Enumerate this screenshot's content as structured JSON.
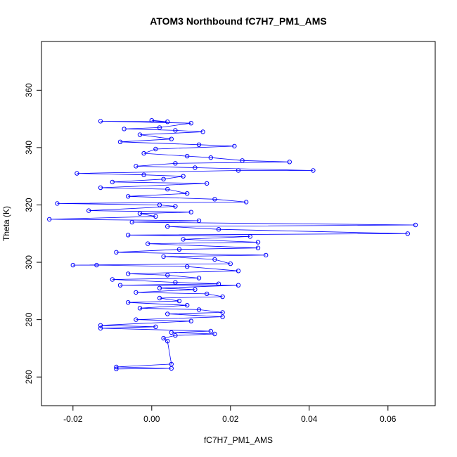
{
  "chart_data": {
    "type": "scatter",
    "title": "ATOM3 Northbound fC7H7_PM1_AMS",
    "xlabel": "fC7H7_PM1_AMS",
    "ylabel": "Theta (K)",
    "xlim": [
      -0.028,
      0.072
    ],
    "ylim": [
      250,
      377
    ],
    "xticks": [
      -0.02,
      0.0,
      0.02,
      0.04,
      0.06
    ],
    "xtick_labels": [
      "-0.02",
      "0.00",
      "0.02",
      "0.04",
      "0.06"
    ],
    "yticks": [
      260,
      280,
      300,
      320,
      340,
      360
    ],
    "ytick_labels": [
      "260",
      "280",
      "300",
      "320",
      "340",
      "360"
    ],
    "grid": false,
    "legend": "none",
    "series": [
      {
        "color": "#0000ff",
        "marker": "open-circle",
        "connect": true,
        "points": [
          [
            0.0,
            349.5
          ],
          [
            0.004,
            349.0
          ],
          [
            -0.013,
            349.2
          ],
          [
            0.01,
            348.5
          ],
          [
            0.002,
            347.0
          ],
          [
            -0.007,
            346.5
          ],
          [
            0.006,
            346.0
          ],
          [
            0.013,
            345.5
          ],
          [
            -0.003,
            344.5
          ],
          [
            0.005,
            343.0
          ],
          [
            -0.008,
            342.0
          ],
          [
            0.012,
            341.0
          ],
          [
            0.021,
            340.5
          ],
          [
            0.001,
            339.5
          ],
          [
            -0.002,
            338.0
          ],
          [
            0.009,
            337.0
          ],
          [
            0.015,
            336.5
          ],
          [
            0.023,
            335.5
          ],
          [
            0.035,
            335.0
          ],
          [
            0.006,
            334.5
          ],
          [
            -0.004,
            333.5
          ],
          [
            0.011,
            333.0
          ],
          [
            0.041,
            332.0
          ],
          [
            0.022,
            332.0
          ],
          [
            -0.019,
            331.0
          ],
          [
            -0.002,
            330.5
          ],
          [
            0.008,
            330.0
          ],
          [
            0.003,
            329.0
          ],
          [
            -0.01,
            328.0
          ],
          [
            0.014,
            327.5
          ],
          [
            -0.013,
            326.0
          ],
          [
            0.004,
            325.5
          ],
          [
            0.009,
            324.0
          ],
          [
            -0.006,
            323.0
          ],
          [
            0.016,
            322.0
          ],
          [
            0.024,
            321.0
          ],
          [
            -0.024,
            320.5
          ],
          [
            0.002,
            320.0
          ],
          [
            0.006,
            319.5
          ],
          [
            -0.016,
            318.0
          ],
          [
            0.01,
            317.5
          ],
          [
            -0.003,
            317.0
          ],
          [
            0.001,
            316.0
          ],
          [
            -0.026,
            315.0
          ],
          [
            0.012,
            314.5
          ],
          [
            -0.005,
            314.0
          ],
          [
            0.067,
            313.0
          ],
          [
            0.004,
            312.5
          ],
          [
            0.017,
            311.5
          ],
          [
            0.065,
            310.0
          ],
          [
            -0.006,
            309.5
          ],
          [
            0.025,
            309.0
          ],
          [
            0.008,
            308.0
          ],
          [
            0.027,
            307.0
          ],
          [
            -0.001,
            306.5
          ],
          [
            0.027,
            305.0
          ],
          [
            0.007,
            304.5
          ],
          [
            -0.009,
            303.5
          ],
          [
            0.029,
            302.5
          ],
          [
            0.003,
            302.0
          ],
          [
            0.016,
            301.0
          ],
          [
            0.02,
            299.5
          ],
          [
            -0.02,
            299.0
          ],
          [
            -0.014,
            299.0
          ],
          [
            0.009,
            298.5
          ],
          [
            0.022,
            297.0
          ],
          [
            -0.006,
            296.0
          ],
          [
            0.004,
            295.5
          ],
          [
            0.012,
            294.5
          ],
          [
            -0.01,
            294.0
          ],
          [
            0.006,
            293.0
          ],
          [
            0.017,
            292.5
          ],
          [
            -0.008,
            292.0
          ],
          [
            0.022,
            292.0
          ],
          [
            0.002,
            291.0
          ],
          [
            0.011,
            290.5
          ],
          [
            -0.004,
            289.5
          ],
          [
            0.014,
            289.0
          ],
          [
            0.018,
            288.0
          ],
          [
            0.002,
            287.5
          ],
          [
            0.007,
            286.5
          ],
          [
            -0.006,
            286.0
          ],
          [
            0.009,
            285.0
          ],
          [
            -0.003,
            284.0
          ],
          [
            0.012,
            283.5
          ],
          [
            0.018,
            282.5
          ],
          [
            0.004,
            282.0
          ],
          [
            0.018,
            281.0
          ],
          [
            -0.004,
            280.0
          ],
          [
            0.01,
            279.5
          ],
          [
            -0.013,
            278.0
          ],
          [
            0.001,
            277.5
          ],
          [
            -0.013,
            277.0
          ],
          [
            0.015,
            276.0
          ],
          [
            0.005,
            275.5
          ],
          [
            0.016,
            275.0
          ],
          [
            0.006,
            274.5
          ],
          [
            0.003,
            273.5
          ],
          [
            0.004,
            272.5
          ],
          [
            0.005,
            264.5
          ],
          [
            -0.009,
            263.5
          ],
          [
            0.005,
            263.0
          ],
          [
            -0.009,
            262.8
          ]
        ]
      }
    ]
  }
}
